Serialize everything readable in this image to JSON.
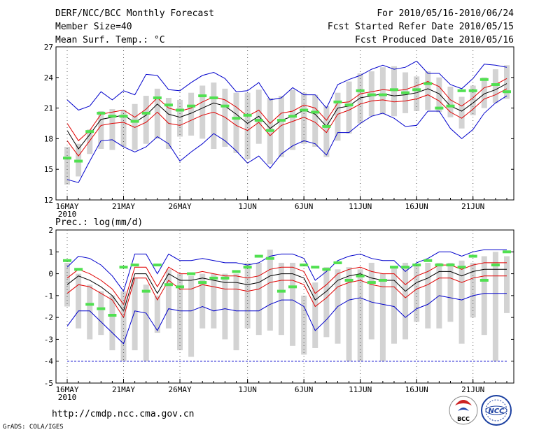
{
  "header": {
    "title": "DERF/NCC/BCC Monthly Forecast",
    "member_size": "Member Size=40",
    "variable1": "Mean Surf. Temp.: °C",
    "period": "For 2010/05/16-2010/06/24",
    "started": "Fcst Started Refer Date 2010/05/15",
    "produced": "Fcst Produced Date 2010/05/16"
  },
  "footer": {
    "url": "http://cmdp.ncc.cma.gov.cn",
    "grads": "GrADS: COLA/IGES",
    "logo_bcc": "BCC",
    "logo_ncc": "NCC"
  },
  "colors": {
    "axis": "#000000",
    "box": "#d3d3d3",
    "mean": "#000000",
    "inner_band": "#e00000",
    "outer_band": "#0000cc",
    "median": "#50e050",
    "threshold": "#0000cc"
  },
  "chart_data": [
    {
      "type": "box",
      "title": "Mean Surf. Temp.: °C",
      "xlabel": "",
      "ylabel": "°C",
      "ylim": [
        12,
        27
      ],
      "yticks": [
        12,
        15,
        18,
        21,
        24,
        27
      ],
      "x_tick_labels": [
        "16MAY",
        "21MAY",
        "26MAY",
        "1JUN",
        "6JUN",
        "11JUN",
        "16JUN",
        "21JUN"
      ],
      "x_tick_days": [
        0,
        5,
        10,
        16,
        21,
        26,
        31,
        36
      ],
      "year_label": "2010",
      "days": 40,
      "series": [
        {
          "name": "box_low",
          "values": [
            13.5,
            14.3,
            16.5,
            17.0,
            16.9,
            17.2,
            16.9,
            17.5,
            18.0,
            17.0,
            18.2,
            18.3,
            18.0,
            17.0,
            17.2,
            16.6,
            16.0,
            17.5,
            15.5,
            16.2,
            16.9,
            17.5,
            17.2,
            16.2,
            17.8,
            18.5,
            19.5,
            20.2,
            20.4,
            20.2,
            20.5,
            20.7,
            20.8,
            20.6,
            20.1,
            19.0,
            20.3,
            21.0,
            21.5,
            21.9
          ]
        },
        {
          "name": "box_high",
          "values": [
            17.2,
            17.5,
            18.9,
            20.7,
            20.9,
            20.8,
            21.4,
            22.2,
            22.9,
            22.0,
            21.8,
            22.5,
            23.2,
            23.5,
            22.9,
            22.5,
            22.5,
            22.8,
            22.0,
            22.2,
            22.8,
            22.5,
            22.3,
            21.2,
            22.5,
            23.6,
            24.4,
            24.6,
            25.0,
            25.1,
            24.5,
            24.1,
            24.6,
            24.0,
            23.1,
            22.1,
            23.2,
            24.0,
            24.8,
            25.2
          ]
        },
        {
          "name": "outer_low",
          "values": [
            14.0,
            13.7,
            15.8,
            17.8,
            17.9,
            17.2,
            16.7,
            17.2,
            18.2,
            17.5,
            15.8,
            16.7,
            17.5,
            18.5,
            17.8,
            16.8,
            15.6,
            16.3,
            15.1,
            16.5,
            17.3,
            17.8,
            17.5,
            16.4,
            18.6,
            18.6,
            19.5,
            20.2,
            20.5,
            20.0,
            19.2,
            19.3,
            20.7,
            20.7,
            19.0,
            18.0,
            18.9,
            20.5,
            21.5,
            22.2
          ]
        },
        {
          "name": "inner_low",
          "values": [
            17.8,
            16.3,
            17.8,
            19.3,
            19.5,
            19.6,
            19.1,
            19.6,
            20.6,
            19.5,
            19.3,
            19.8,
            20.3,
            20.6,
            20.1,
            19.3,
            18.8,
            19.6,
            18.3,
            19.3,
            19.7,
            20.1,
            19.6,
            18.6,
            20.4,
            20.8,
            21.4,
            21.7,
            21.8,
            21.6,
            21.7,
            21.9,
            22.3,
            21.7,
            20.6,
            20.0,
            20.9,
            21.9,
            22.3,
            22.9
          ]
        },
        {
          "name": "mean",
          "values": [
            18.8,
            17.0,
            18.4,
            19.9,
            20.1,
            20.3,
            19.6,
            20.3,
            21.4,
            20.4,
            20.1,
            20.5,
            21.0,
            21.5,
            21.2,
            20.4,
            19.5,
            20.2,
            19.0,
            19.8,
            20.2,
            20.8,
            20.4,
            19.2,
            21.0,
            21.2,
            22.0,
            22.2,
            22.4,
            22.2,
            22.3,
            22.5,
            22.9,
            22.4,
            21.2,
            20.7,
            21.5,
            22.4,
            22.8,
            23.4
          ]
        },
        {
          "name": "inner_high",
          "values": [
            19.5,
            17.8,
            18.8,
            20.4,
            20.6,
            20.8,
            20.1,
            20.9,
            22.0,
            21.0,
            20.7,
            21.0,
            21.6,
            22.1,
            21.8,
            21.1,
            20.2,
            20.8,
            19.5,
            20.5,
            20.7,
            21.3,
            21.0,
            19.8,
            21.5,
            21.6,
            22.4,
            22.6,
            22.8,
            22.7,
            22.8,
            23.2,
            23.6,
            23.1,
            21.8,
            21.2,
            22.0,
            23.0,
            23.3,
            23.9
          ]
        },
        {
          "name": "outer_high",
          "values": [
            21.8,
            20.8,
            21.2,
            22.6,
            21.8,
            22.7,
            22.3,
            24.3,
            24.2,
            22.8,
            22.7,
            23.5,
            24.2,
            24.5,
            23.9,
            22.6,
            22.7,
            23.5,
            21.8,
            22.0,
            23.0,
            22.3,
            22.3,
            21.0,
            23.3,
            23.8,
            24.2,
            24.8,
            25.2,
            24.8,
            25.0,
            25.6,
            24.4,
            24.4,
            23.3,
            22.9,
            23.9,
            25.3,
            25.2,
            25.0
          ]
        },
        {
          "name": "median",
          "values": [
            16.1,
            15.8,
            18.7,
            20.5,
            20.2,
            20.2,
            19.7,
            20.5,
            22.0,
            21.3,
            20.8,
            21.2,
            22.2,
            22.0,
            21.2,
            20.0,
            20.3,
            19.8,
            18.8,
            19.8,
            20.2,
            20.8,
            20.6,
            19.2,
            21.6,
            21.3,
            22.7,
            22.3,
            22.3,
            22.8,
            22.5,
            22.8,
            23.4,
            21.0,
            21.2,
            22.7,
            22.7,
            23.8,
            23.3,
            22.6
          ]
        }
      ]
    },
    {
      "type": "box",
      "title": "Prec.: log(mm/d)",
      "xlabel": "",
      "ylabel": "log(mm/d)",
      "ylim": [
        -5,
        2
      ],
      "yticks": [
        -5,
        -4,
        -3,
        -2,
        -1,
        0,
        1,
        2
      ],
      "x_tick_labels": [
        "16MAY",
        "21MAY",
        "26MAY",
        "1JUN",
        "6JUN",
        "11JUN",
        "16JUN",
        "21JUN"
      ],
      "x_tick_days": [
        0,
        5,
        10,
        16,
        21,
        26,
        31,
        36
      ],
      "year_label": "2010",
      "days": 40,
      "threshold": -4.0,
      "series": [
        {
          "name": "box_low",
          "values": [
            -1.5,
            -2.5,
            -3.0,
            -2.8,
            -3.5,
            -4.0,
            -3.5,
            -4.0,
            -2.7,
            -2.5,
            -3.5,
            -3.8,
            -2.5,
            -2.5,
            -3.0,
            -3.5,
            -2.5,
            -2.8,
            -2.6,
            -2.8,
            -3.3,
            -3.7,
            -3.4,
            -2.9,
            -3.2,
            -4.0,
            -4.0,
            -3.0,
            -4.0,
            -3.2,
            -3.0,
            -2.2,
            -2.5,
            -2.5,
            -2.2,
            -3.2,
            -2.0,
            -2.8,
            -4.0,
            -1.8
          ]
        },
        {
          "name": "box_high",
          "values": [
            0.5,
            0.0,
            -0.5,
            -0.8,
            -1.0,
            -0.8,
            -0.2,
            -0.5,
            -1.0,
            0.2,
            0.0,
            -0.1,
            0.0,
            0.0,
            0.0,
            0.0,
            0.5,
            0.5,
            1.1,
            0.5,
            0.5,
            -1.0,
            -0.4,
            0.3,
            0.2,
            0.3,
            0.2,
            0.5,
            0.0,
            0.3,
            0.5,
            0.4,
            0.5,
            0.5,
            0.5,
            0.6,
            0.5,
            0.8,
            1.0,
            0.8
          ]
        },
        {
          "name": "outer_low",
          "values": [
            -2.4,
            -1.7,
            -1.7,
            -2.2,
            -2.7,
            -3.2,
            -1.7,
            -1.8,
            -2.6,
            -1.6,
            -1.7,
            -1.7,
            -1.5,
            -1.7,
            -1.6,
            -1.7,
            -1.7,
            -1.7,
            -1.4,
            -1.2,
            -1.2,
            -1.5,
            -2.6,
            -2.1,
            -1.5,
            -1.2,
            -1.1,
            -1.3,
            -1.4,
            -1.5,
            -2.0,
            -1.6,
            -1.4,
            -1.0,
            -1.1,
            -1.2,
            -1.0,
            -0.9,
            -0.9,
            -0.9
          ]
        },
        {
          "name": "inner_low",
          "values": [
            -0.9,
            -0.5,
            -0.6,
            -0.9,
            -1.2,
            -2.0,
            -0.2,
            -0.2,
            -1.2,
            -0.3,
            -0.7,
            -0.7,
            -0.5,
            -0.6,
            -0.7,
            -0.7,
            -0.8,
            -0.7,
            -0.4,
            -0.3,
            -0.3,
            -0.5,
            -1.5,
            -1.1,
            -0.6,
            -0.4,
            -0.3,
            -0.5,
            -0.6,
            -0.6,
            -1.1,
            -0.7,
            -0.5,
            -0.2,
            -0.2,
            -0.4,
            -0.2,
            -0.1,
            -0.1,
            -0.1
          ]
        },
        {
          "name": "mean",
          "values": [
            -0.5,
            -0.1,
            -0.3,
            -0.6,
            -1.0,
            -1.7,
            0.0,
            0.0,
            -0.9,
            0.0,
            -0.3,
            -0.3,
            -0.2,
            -0.3,
            -0.4,
            -0.4,
            -0.5,
            -0.4,
            -0.1,
            0.0,
            0.0,
            -0.2,
            -1.2,
            -0.8,
            -0.3,
            -0.1,
            0.0,
            -0.2,
            -0.3,
            -0.3,
            -0.8,
            -0.4,
            -0.2,
            0.1,
            0.1,
            -0.1,
            0.1,
            0.2,
            0.2,
            0.2
          ]
        },
        {
          "name": "inner_high",
          "values": [
            -0.2,
            0.2,
            0.0,
            -0.3,
            -0.7,
            -1.4,
            0.3,
            0.3,
            -0.6,
            0.3,
            0.0,
            0.0,
            0.1,
            0.0,
            -0.1,
            -0.1,
            -0.2,
            -0.1,
            0.2,
            0.3,
            0.3,
            0.1,
            -0.9,
            -0.5,
            0.0,
            0.2,
            0.3,
            0.1,
            0.0,
            0.0,
            -0.5,
            -0.1,
            0.1,
            0.4,
            0.4,
            0.2,
            0.4,
            0.5,
            0.5,
            0.5
          ]
        },
        {
          "name": "outer_high",
          "values": [
            0.3,
            0.8,
            0.7,
            0.4,
            -0.1,
            -0.8,
            0.9,
            0.9,
            0.0,
            0.9,
            0.6,
            0.6,
            0.7,
            0.6,
            0.5,
            0.5,
            0.4,
            0.5,
            0.8,
            0.9,
            0.9,
            0.7,
            -0.3,
            0.1,
            0.6,
            0.8,
            0.9,
            0.7,
            0.6,
            0.6,
            0.1,
            0.5,
            0.7,
            1.0,
            1.0,
            0.8,
            1.0,
            1.1,
            1.1,
            1.1
          ]
        },
        {
          "name": "median",
          "values": [
            0.6,
            0.2,
            -1.4,
            -1.6,
            -1.9,
            0.3,
            0.4,
            -0.8,
            0.4,
            -0.5,
            -0.6,
            0.0,
            -0.4,
            -0.2,
            -0.2,
            0.1,
            0.3,
            0.8,
            0.7,
            -0.8,
            -0.6,
            0.4,
            0.3,
            0.2,
            0.5,
            -0.3,
            -0.1,
            -0.4,
            -0.3,
            0.3,
            0.3,
            0.4,
            0.6,
            0.4,
            0.4,
            0.3,
            0.8,
            -0.3,
            0.4,
            1.0
          ]
        }
      ]
    }
  ]
}
